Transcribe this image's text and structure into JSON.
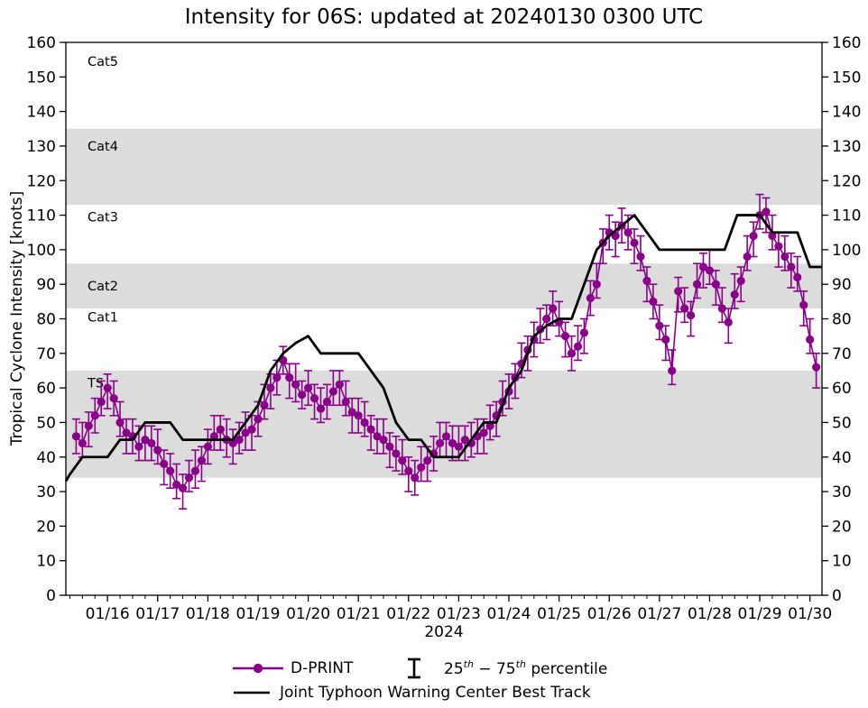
{
  "axes": {
    "x_range": [
      15.17,
      30.24
    ],
    "y_range": [
      0,
      160
    ],
    "y_ticks": [
      0,
      10,
      20,
      30,
      40,
      50,
      60,
      70,
      80,
      90,
      100,
      110,
      120,
      130,
      140,
      150,
      160
    ],
    "x_ticks": [
      {
        "t": 16,
        "label": "01/16"
      },
      {
        "t": 17,
        "label": "01/17"
      },
      {
        "t": 18,
        "label": "01/18"
      },
      {
        "t": 19,
        "label": "01/19"
      },
      {
        "t": 20,
        "label": "01/20"
      },
      {
        "t": 21,
        "label": "01/21"
      },
      {
        "t": 22,
        "label": "01/22"
      },
      {
        "t": 23,
        "label": "01/23"
      },
      {
        "t": 24,
        "label": "01/24"
      },
      {
        "t": 25,
        "label": "01/25"
      },
      {
        "t": 26,
        "label": "01/26"
      },
      {
        "t": 27,
        "label": "01/27"
      },
      {
        "t": 28,
        "label": "01/28"
      },
      {
        "t": 29,
        "label": "01/29"
      },
      {
        "t": 30,
        "label": "01/30"
      }
    ],
    "minor_tick_step_days": 0.25
  },
  "bands": [
    {
      "label": "TS",
      "lo": 34,
      "hi": 65,
      "shaded": true,
      "label_v": 61.5
    },
    {
      "label": "Cat1",
      "lo": 65,
      "hi": 83,
      "shaded": false,
      "label_v": 80.5
    },
    {
      "label": "Cat2",
      "lo": 83,
      "hi": 96,
      "shaded": true,
      "label_v": 89.5
    },
    {
      "label": "Cat3",
      "lo": 96,
      "hi": 113,
      "shaded": false,
      "label_v": 109.5
    },
    {
      "label": "Cat4",
      "lo": 113,
      "hi": 135,
      "shaded": true,
      "label_v": 130
    },
    {
      "label": "Cat5",
      "lo": 135,
      "hi": 160,
      "shaded": false,
      "label_v": 154.5
    }
  ],
  "colors": {
    "dprint": "#8b008b",
    "besttrack": "#000000",
    "band": "#dcdcdc",
    "text": "#000000"
  },
  "legend": {
    "dprint_label": "D-PRINT",
    "percentile_p1": "25",
    "percentile_sup1": "th",
    "percentile_p2": " − 75",
    "percentile_sup2": "th",
    "percentile_p3": " percentile",
    "besttrack_label": "Joint Typhoon Warning Center Best Track"
  },
  "chart_data": {
    "type": "line",
    "title": "Intensity for 06S: updated at 20240130 0300 UTC",
    "xlabel": "2024",
    "ylabel": "Tropical Cyclone Intensity [knots]",
    "x_unit": "day of January 2024, UTC",
    "xlim": [
      15.17,
      30.24
    ],
    "ylim": [
      0,
      160
    ],
    "grid": false,
    "legend_position": "bottom-center",
    "category_bands": [
      "TS 34-65 kt",
      "Cat1 65-83 kt",
      "Cat2 83-96 kt",
      "Cat3 96-113 kt",
      "Cat4 113-135 kt",
      "Cat5 135+ kt"
    ],
    "series": [
      {
        "name": "D-PRINT",
        "style": "marker+line+errorbar",
        "color": "#8b008b",
        "marker": "circle",
        "errorbar_meaning": "25th-75th percentile",
        "point_format": [
          "day_of_jan",
          "p25",
          "median",
          "p75"
        ],
        "points": [
          [
            15.375,
            41,
            46,
            51
          ],
          [
            15.5,
            40,
            44,
            50
          ],
          [
            15.625,
            43,
            49,
            53
          ],
          [
            15.75,
            47,
            52,
            57
          ],
          [
            15.875,
            52,
            56,
            62
          ],
          [
            16.0,
            54,
            60,
            64
          ],
          [
            16.125,
            52,
            57,
            62
          ],
          [
            16.25,
            46,
            50,
            56
          ],
          [
            16.375,
            41,
            47,
            51
          ],
          [
            16.5,
            41,
            46,
            51
          ],
          [
            16.625,
            39,
            43,
            49
          ],
          [
            16.75,
            39,
            45,
            49
          ],
          [
            16.875,
            39,
            44,
            49
          ],
          [
            17.0,
            38,
            42,
            48
          ],
          [
            17.125,
            32,
            38,
            42
          ],
          [
            17.25,
            31,
            36,
            41
          ],
          [
            17.375,
            28,
            32,
            38
          ],
          [
            17.5,
            25,
            31,
            35
          ],
          [
            17.625,
            30,
            34,
            39
          ],
          [
            17.75,
            31,
            36,
            42
          ],
          [
            17.875,
            33,
            39,
            43
          ],
          [
            18.0,
            38,
            43,
            48
          ],
          [
            18.125,
            42,
            46,
            52
          ],
          [
            18.25,
            42,
            48,
            52
          ],
          [
            18.375,
            40,
            45,
            51
          ],
          [
            18.5,
            38,
            44,
            48
          ],
          [
            18.625,
            41,
            45,
            50
          ],
          [
            18.75,
            42,
            47,
            53
          ],
          [
            18.875,
            42,
            48,
            52
          ],
          [
            19.0,
            46,
            51,
            56
          ],
          [
            19.125,
            51,
            55,
            61
          ],
          [
            19.25,
            54,
            60,
            64
          ],
          [
            19.375,
            58,
            63,
            68
          ],
          [
            19.5,
            64,
            68,
            72
          ],
          [
            19.625,
            57,
            63,
            67
          ],
          [
            19.75,
            56,
            61,
            67
          ],
          [
            19.875,
            54,
            58,
            62
          ],
          [
            20.0,
            55,
            60,
            65
          ],
          [
            20.125,
            51,
            57,
            61
          ],
          [
            20.25,
            50,
            54,
            60
          ],
          [
            20.375,
            51,
            56,
            61
          ],
          [
            20.5,
            55,
            59,
            65
          ],
          [
            20.625,
            55,
            61,
            65
          ],
          [
            20.75,
            52,
            56,
            62
          ],
          [
            20.875,
            47,
            53,
            57
          ],
          [
            21.0,
            47,
            52,
            57
          ],
          [
            21.125,
            46,
            50,
            56
          ],
          [
            21.25,
            42,
            48,
            52
          ],
          [
            21.375,
            41,
            46,
            51
          ],
          [
            21.5,
            41,
            45,
            51
          ],
          [
            21.625,
            37,
            43,
            47
          ],
          [
            21.75,
            36,
            41,
            46
          ],
          [
            21.875,
            35,
            39,
            45
          ],
          [
            22.0,
            30,
            36,
            40
          ],
          [
            22.125,
            29,
            34,
            39
          ],
          [
            22.25,
            33,
            37,
            43
          ],
          [
            22.375,
            33,
            39,
            43
          ],
          [
            22.5,
            36,
            41,
            46
          ],
          [
            22.625,
            40,
            44,
            50
          ],
          [
            22.75,
            40,
            46,
            50
          ],
          [
            22.875,
            39,
            44,
            49
          ],
          [
            23.0,
            39,
            43,
            49
          ],
          [
            23.125,
            39,
            45,
            49
          ],
          [
            23.25,
            40,
            44,
            50
          ],
          [
            23.375,
            41,
            46,
            51
          ],
          [
            23.5,
            41,
            47,
            51
          ],
          [
            23.625,
            45,
            49,
            55
          ],
          [
            23.75,
            46,
            52,
            56
          ],
          [
            23.875,
            52,
            56,
            62
          ],
          [
            24.0,
            54,
            59,
            64
          ],
          [
            24.125,
            57,
            63,
            67
          ],
          [
            24.25,
            63,
            67,
            73
          ],
          [
            24.375,
            65,
            71,
            75
          ],
          [
            24.5,
            69,
            74,
            79
          ],
          [
            24.625,
            73,
            77,
            83
          ],
          [
            24.75,
            74,
            80,
            84
          ],
          [
            24.875,
            78,
            83,
            88
          ],
          [
            25.0,
            75,
            79,
            85
          ],
          [
            25.125,
            69,
            75,
            79
          ],
          [
            25.25,
            65,
            70,
            75
          ],
          [
            25.375,
            68,
            72,
            78
          ],
          [
            25.5,
            70,
            76,
            80
          ],
          [
            25.625,
            81,
            86,
            91
          ],
          [
            25.75,
            86,
            90,
            96
          ],
          [
            25.875,
            96,
            102,
            106
          ],
          [
            26.0,
            100,
            105,
            110
          ],
          [
            26.125,
            98,
            104,
            108
          ],
          [
            26.25,
            102,
            107,
            112
          ],
          [
            26.375,
            100,
            105,
            110
          ],
          [
            26.5,
            96,
            102,
            106
          ],
          [
            26.625,
            94,
            98,
            104
          ],
          [
            26.75,
            85,
            91,
            95
          ],
          [
            26.875,
            80,
            85,
            90
          ],
          [
            27.0,
            74,
            78,
            84
          ],
          [
            27.125,
            68,
            74,
            78
          ],
          [
            27.25,
            61,
            65,
            71
          ],
          [
            27.375,
            82,
            88,
            92
          ],
          [
            27.5,
            79,
            83,
            89
          ],
          [
            27.625,
            75,
            81,
            85
          ],
          [
            27.75,
            86,
            90,
            96
          ],
          [
            27.875,
            89,
            95,
            99
          ],
          [
            28.0,
            90,
            94,
            100
          ],
          [
            28.125,
            84,
            90,
            94
          ],
          [
            28.25,
            79,
            83,
            89
          ],
          [
            28.375,
            73,
            79,
            83
          ],
          [
            28.5,
            83,
            87,
            93
          ],
          [
            28.625,
            85,
            91,
            95
          ],
          [
            28.75,
            94,
            98,
            104
          ],
          [
            28.875,
            98,
            104,
            108
          ],
          [
            29.0,
            106,
            110,
            116
          ],
          [
            29.125,
            105,
            111,
            115
          ],
          [
            29.25,
            100,
            104,
            110
          ],
          [
            29.375,
            95,
            101,
            105
          ],
          [
            29.5,
            94,
            98,
            104
          ],
          [
            29.625,
            89,
            95,
            99
          ],
          [
            29.75,
            88,
            92,
            98
          ],
          [
            29.875,
            78,
            84,
            88
          ],
          [
            30.0,
            70,
            74,
            80
          ],
          [
            30.125,
            60,
            66,
            70
          ]
        ]
      },
      {
        "name": "Joint Typhoon Warning Center Best Track",
        "style": "line",
        "color": "#000000",
        "point_format": [
          "day_of_jan",
          "knots"
        ],
        "points": [
          [
            15.17,
            33
          ],
          [
            15.25,
            35
          ],
          [
            15.5,
            40
          ],
          [
            16.0,
            40
          ],
          [
            16.25,
            45
          ],
          [
            16.5,
            45
          ],
          [
            16.75,
            50
          ],
          [
            17.25,
            50
          ],
          [
            17.5,
            45
          ],
          [
            18.5,
            45
          ],
          [
            18.75,
            50
          ],
          [
            19.0,
            55
          ],
          [
            19.25,
            65
          ],
          [
            19.5,
            70
          ],
          [
            19.75,
            73
          ],
          [
            20.0,
            75
          ],
          [
            20.25,
            70
          ],
          [
            21.0,
            70
          ],
          [
            21.25,
            65
          ],
          [
            21.5,
            60
          ],
          [
            21.75,
            50
          ],
          [
            22.0,
            45
          ],
          [
            22.25,
            45
          ],
          [
            22.5,
            40
          ],
          [
            23.0,
            40
          ],
          [
            23.25,
            45
          ],
          [
            23.5,
            50
          ],
          [
            23.75,
            50
          ],
          [
            24.0,
            60
          ],
          [
            24.25,
            65
          ],
          [
            24.5,
            75
          ],
          [
            24.75,
            78
          ],
          [
            25.0,
            80
          ],
          [
            25.25,
            80
          ],
          [
            25.5,
            90
          ],
          [
            25.75,
            100
          ],
          [
            26.0,
            104
          ],
          [
            26.25,
            107
          ],
          [
            26.5,
            110
          ],
          [
            26.75,
            105
          ],
          [
            27.0,
            100
          ],
          [
            28.3,
            100
          ],
          [
            28.55,
            110
          ],
          [
            29.0,
            110
          ],
          [
            29.25,
            105
          ],
          [
            29.75,
            105
          ],
          [
            30.0,
            95
          ],
          [
            30.24,
            95
          ]
        ]
      }
    ]
  }
}
